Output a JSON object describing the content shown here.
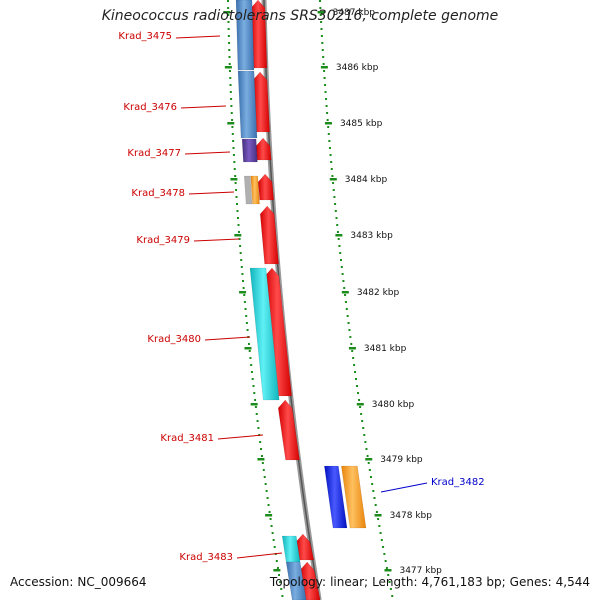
{
  "title": "Kineococcus radiotolerans SRS30216, complete genome",
  "colors": {
    "forward": "#ff0000",
    "reverse_blue": "#4a84c4",
    "cyan": "#20d0d8",
    "orange": "#ff9b1a",
    "purple": "#5a3a9a",
    "gray": "#b0b0b0",
    "label_red": "#cc0000",
    "label_blue": "#0000cc",
    "dots": "#1c8c1c",
    "backbone": "#777777"
  },
  "scale_ticks": [
    "3487 kbp",
    "3486 kbp",
    "3485 kbp",
    "3484 kbp",
    "3483 kbp",
    "3482 kbp",
    "3481 kbp",
    "3480 kbp",
    "3479 kbp",
    "3478 kbp",
    "3477 kbp"
  ],
  "gene_labels": [
    {
      "name": "Krad_3475",
      "strand": "-"
    },
    {
      "name": "Krad_3476",
      "strand": "-"
    },
    {
      "name": "Krad_3477",
      "strand": "-"
    },
    {
      "name": "Krad_3478",
      "strand": "-"
    },
    {
      "name": "Krad_3479",
      "strand": "-"
    },
    {
      "name": "Krad_3480",
      "strand": "-"
    },
    {
      "name": "Krad_3481",
      "strand": "-"
    },
    {
      "name": "Krad_3482",
      "strand": "+"
    },
    {
      "name": "Krad_3483",
      "strand": "-"
    }
  ],
  "footer": {
    "accession_label": "Accession:",
    "accession": "NC_009664",
    "topology_label": "Topology:",
    "topology": "linear;",
    "length_label": "Length:",
    "length": "4,761,183 bp;",
    "genes_label": "Genes:",
    "genes": "4,544"
  }
}
